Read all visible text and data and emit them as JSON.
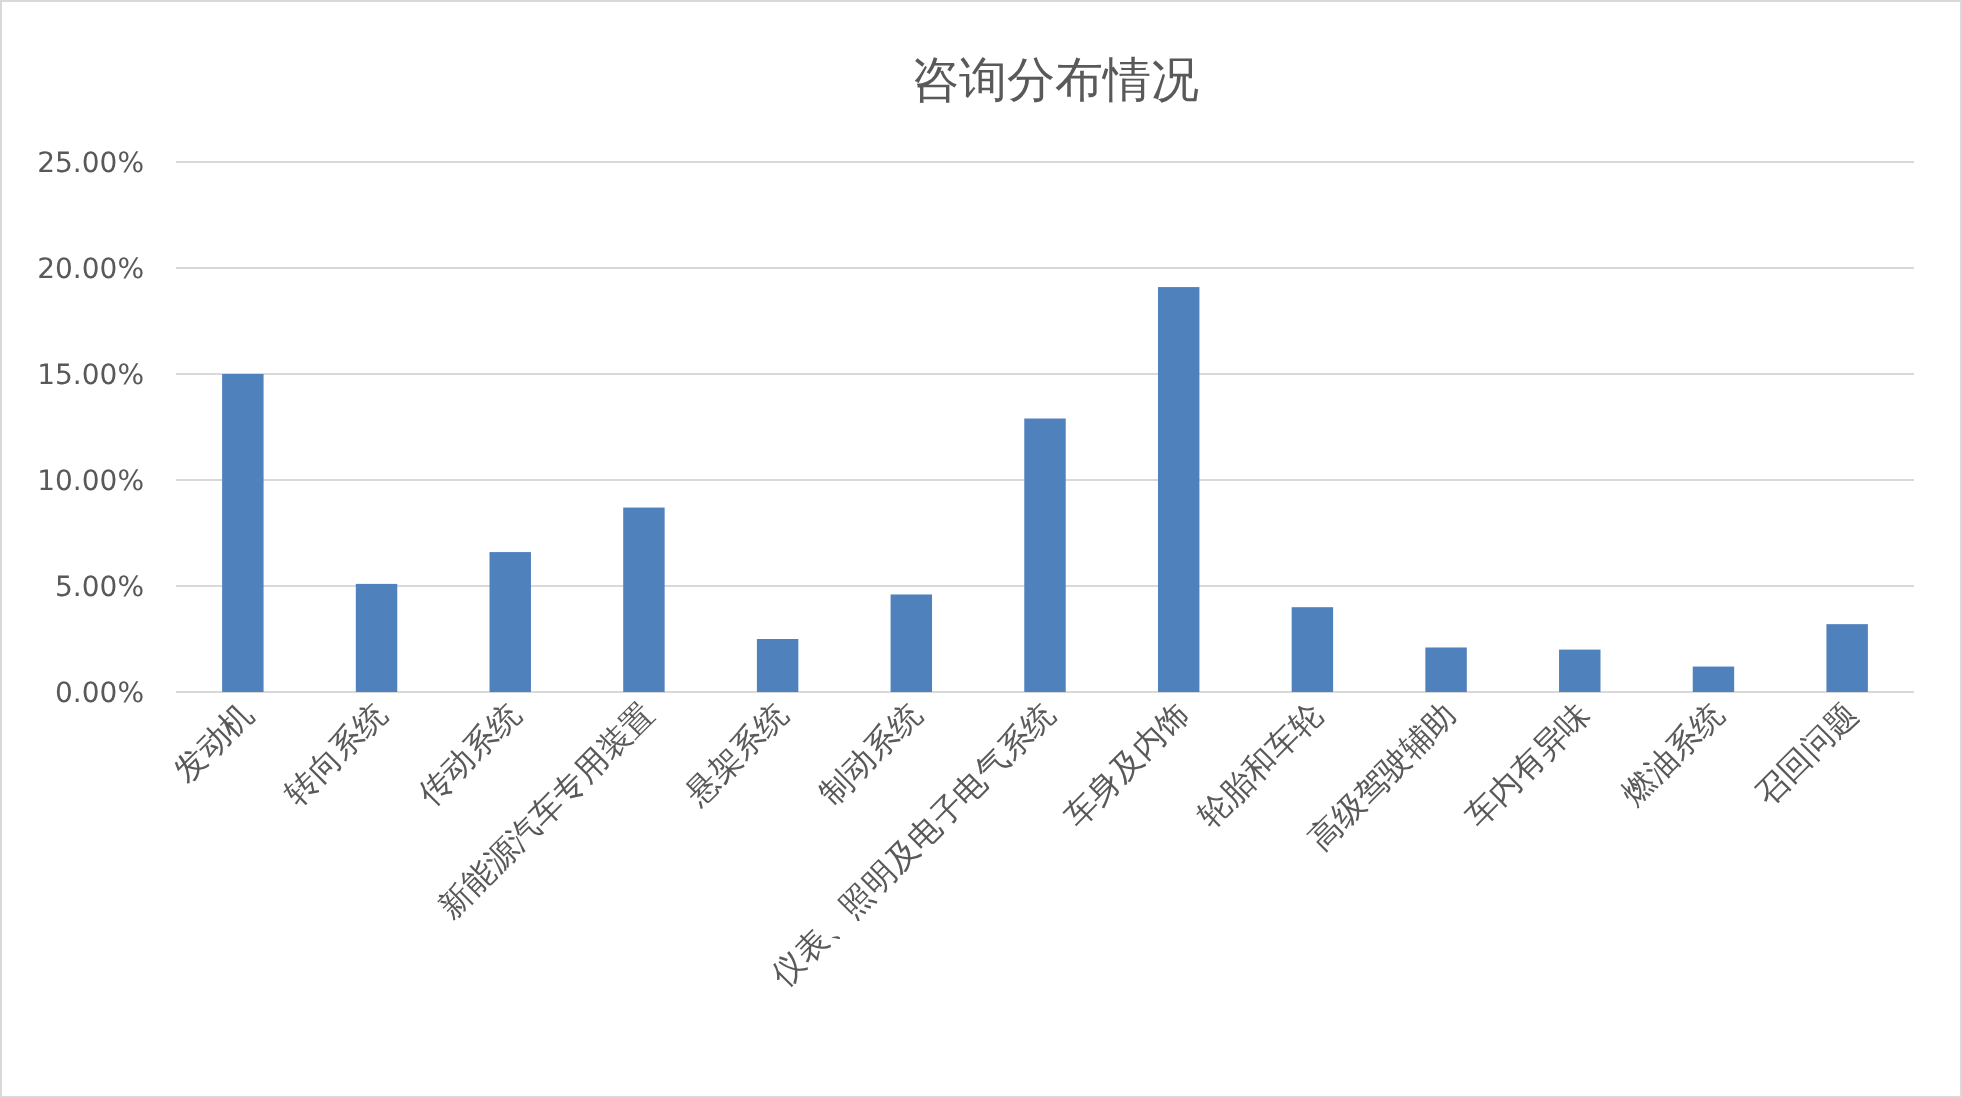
{
  "chart_data": {
    "type": "bar",
    "title": "咨询分布情况",
    "categories": [
      "发动机",
      "转向系统",
      "传动系统",
      "新能源汽车专用装置",
      "悬架系统",
      "制动系统",
      "仪表、照明及电子电气系统",
      "车身及内饰",
      "轮胎和车轮",
      "高级驾驶辅助",
      "车内有异味",
      "燃油系统",
      "召回问题"
    ],
    "values": [
      15.0,
      5.1,
      6.6,
      8.7,
      2.5,
      4.6,
      12.9,
      19.1,
      4.0,
      2.1,
      2.0,
      1.2,
      3.2
    ],
    "color": "#4f81bd",
    "ylim": [
      0,
      25
    ],
    "yticks": [
      {
        "value": 0,
        "label": "0.00%"
      },
      {
        "value": 5,
        "label": "5.00%"
      },
      {
        "value": 10,
        "label": "10.00%"
      },
      {
        "value": 15,
        "label": "15.00%"
      },
      {
        "value": 20,
        "label": "20.00%"
      },
      {
        "value": 25,
        "label": "25.00%"
      }
    ],
    "grid": "y"
  }
}
